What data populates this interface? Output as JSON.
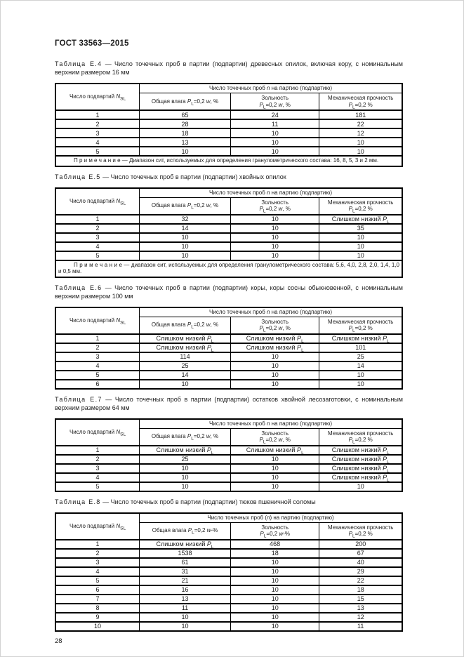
{
  "page": {
    "doc_header": "ГОСТ 33563—2015",
    "page_number": "28"
  },
  "tables": [
    {
      "caption_label": "Таблица Е.4",
      "caption_text": " — Число точечных проб в партии (подпартии) древесных опилок, включая кору, с номинальным верхним размером 16 мм",
      "span_header": [
        {
          "t": "Число точечных проб "
        },
        {
          "i": "n"
        },
        {
          "t": " на партию (подпартию)"
        }
      ],
      "col_headers": [
        [
          {
            "t": "Число подпартий "
          },
          {
            "i": "N"
          },
          {
            "s": "SL"
          }
        ],
        [
          {
            "t": "Общая влага "
          },
          {
            "i": "P"
          },
          {
            "s": "L"
          },
          {
            "t": "=0,2 "
          },
          {
            "i": "w"
          },
          {
            "t": ", %"
          }
        ],
        [
          {
            "t": "Зольность"
          },
          {
            "br": true
          },
          {
            "i": "P"
          },
          {
            "s": "L"
          },
          {
            "t": "=0,2 "
          },
          {
            "i": "w"
          },
          {
            "t": ", %"
          }
        ],
        [
          {
            "t": "Механическая прочность"
          },
          {
            "br": true
          },
          {
            "i": "P"
          },
          {
            "s": "L"
          },
          {
            "t": "=0,2 %"
          }
        ]
      ],
      "rows": [
        [
          "1",
          "65",
          "24",
          "181"
        ],
        [
          "2",
          "28",
          "11",
          "22"
        ],
        [
          "3",
          "18",
          "10",
          "12"
        ],
        [
          "4",
          "13",
          "10",
          "10"
        ],
        [
          "5",
          "10",
          "10",
          "10"
        ]
      ],
      "note": "П р и м е ч а н и е  — Диапазон сит, используемых для определения гранулометрического состава: 16, 8, 5, 3 и 2 мм."
    },
    {
      "caption_label": "Таблица Е.5",
      "caption_text": " — Число точечных проб в партии (подпартии) хвойных опилок",
      "span_header": [
        {
          "t": "Число точечных проб "
        },
        {
          "i": "n"
        },
        {
          "t": " на партию (подпартию)"
        }
      ],
      "col_headers": [
        [
          {
            "t": "Число подпартий "
          },
          {
            "i": "N"
          },
          {
            "s": "SL"
          }
        ],
        [
          {
            "t": "Общая влага "
          },
          {
            "i": "P"
          },
          {
            "s": "L"
          },
          {
            "t": "=0,2 "
          },
          {
            "i": "w"
          },
          {
            "t": ", %"
          }
        ],
        [
          {
            "t": "Зольность"
          },
          {
            "br": true
          },
          {
            "i": "P"
          },
          {
            "s": "L"
          },
          {
            "t": "=0,2 "
          },
          {
            "i": "w"
          },
          {
            "t": ", %"
          }
        ],
        [
          {
            "t": "Механическая прочность"
          },
          {
            "br": true
          },
          {
            "i": "P"
          },
          {
            "s": "L"
          },
          {
            "t": "=0,2 %"
          }
        ]
      ],
      "rows": [
        [
          "1",
          "32",
          "10",
          [
            {
              "t": "Слишком низкий "
            },
            {
              "i": "P"
            },
            {
              "s": "L"
            }
          ]
        ],
        [
          "2",
          "14",
          "10",
          "35"
        ],
        [
          "3",
          "10",
          "10",
          "10"
        ],
        [
          "4",
          "10",
          "10",
          "10"
        ],
        [
          "5",
          "10",
          "10",
          "10"
        ]
      ],
      "note": "П р и м е ч а н и е  — диапазон сит, используемых для определения гранулометрического состава: 5,6, 4,0, 2,8, 2,0, 1,4, 1,0 и 0,5 мм."
    },
    {
      "caption_label": "Таблица Е.6",
      "caption_text": " — Число точечных проб в партии (подпартии) коры, коры сосны обыкновенной, с номинальным верхним размером 100 мм",
      "span_header": [
        {
          "t": "Число точечных проб "
        },
        {
          "i": "n"
        },
        {
          "t": " на партию (подпартию)"
        }
      ],
      "col_headers": [
        [
          {
            "t": "Число подпартий "
          },
          {
            "i": "N"
          },
          {
            "s": "SL"
          }
        ],
        [
          {
            "t": "Общая влага "
          },
          {
            "i": "P"
          },
          {
            "s": "L"
          },
          {
            "t": "=0,2 "
          },
          {
            "i": "w"
          },
          {
            "t": ", %"
          }
        ],
        [
          {
            "t": "Зольность"
          },
          {
            "br": true
          },
          {
            "i": "P"
          },
          {
            "s": "L"
          },
          {
            "t": "=0,2 "
          },
          {
            "i": "w"
          },
          {
            "t": ", %"
          }
        ],
        [
          {
            "t": "Механическая прочность"
          },
          {
            "br": true
          },
          {
            "i": "P"
          },
          {
            "s": "L"
          },
          {
            "t": "=0,2 %"
          }
        ]
      ],
      "rows": [
        [
          "1",
          [
            {
              "t": "Слишком низкий "
            },
            {
              "i": "P"
            },
            {
              "s": "L"
            }
          ],
          [
            {
              "t": "Слишком низкий "
            },
            {
              "i": "P"
            },
            {
              "s": "L"
            }
          ],
          [
            {
              "t": "Слишком низкий "
            },
            {
              "i": "P"
            },
            {
              "s": "L"
            }
          ]
        ],
        [
          "2",
          [
            {
              "t": "Слишком низкий "
            },
            {
              "i": "P"
            },
            {
              "s": "L"
            }
          ],
          [
            {
              "t": "Слишком низкий "
            },
            {
              "i": "P"
            },
            {
              "s": "L"
            }
          ],
          "101"
        ],
        [
          "3",
          "114",
          "10",
          "25"
        ],
        [
          "4",
          "25",
          "10",
          "14"
        ],
        [
          "5",
          "14",
          "10",
          "10"
        ],
        [
          "6",
          "10",
          "10",
          "10"
        ]
      ]
    },
    {
      "caption_label": "Таблица Е.7",
      "caption_text": " — Число точечных проб в партии (подпартии) остатков хвойной лесозаготовки, с номинальным верхним размером 64 мм",
      "span_header": [
        {
          "t": "Число точечных проб "
        },
        {
          "i": "n"
        },
        {
          "t": " на партию (подпартию)"
        }
      ],
      "col_headers": [
        [
          {
            "t": "Число подпартий "
          },
          {
            "i": "N"
          },
          {
            "s": "SL"
          }
        ],
        [
          {
            "t": "Общая влага "
          },
          {
            "i": "P"
          },
          {
            "s": "L"
          },
          {
            "t": "=0,2 "
          },
          {
            "i": "w"
          },
          {
            "t": ", %"
          }
        ],
        [
          {
            "t": "Зольность"
          },
          {
            "br": true
          },
          {
            "i": "P"
          },
          {
            "s": "L"
          },
          {
            "t": "=0,2 "
          },
          {
            "i": "w"
          },
          {
            "t": ", %"
          }
        ],
        [
          {
            "t": "Механическая прочность"
          },
          {
            "br": true
          },
          {
            "i": "P"
          },
          {
            "s": "L"
          },
          {
            "t": "=0,2 %"
          }
        ]
      ],
      "rows": [
        [
          "1",
          [
            {
              "t": "Слишком низкий "
            },
            {
              "i": "P"
            },
            {
              "s": "L"
            }
          ],
          [
            {
              "t": "Слишком низкий "
            },
            {
              "i": "P"
            },
            {
              "s": "L"
            }
          ],
          [
            {
              "t": "Слишком низкий "
            },
            {
              "i": "P"
            },
            {
              "s": "L"
            }
          ]
        ],
        [
          "2",
          "25",
          "10",
          [
            {
              "t": "Слишком низкий "
            },
            {
              "i": "P"
            },
            {
              "s": "L"
            }
          ]
        ],
        [
          "3",
          "10",
          "10",
          [
            {
              "t": "Слишком низкий "
            },
            {
              "i": "P"
            },
            {
              "s": "L"
            }
          ]
        ],
        [
          "4",
          "10",
          "10",
          [
            {
              "t": "Слишком низкий "
            },
            {
              "i": "P"
            },
            {
              "s": "L"
            }
          ]
        ],
        [
          "5",
          "10",
          "10",
          "10"
        ]
      ]
    },
    {
      "caption_label": "Таблица Е.8",
      "caption_text": " — Число точечных проб в партии (подпартии) тюков пшеничной соломы",
      "span_header": [
        {
          "t": "Число точечных проб ("
        },
        {
          "i": "n"
        },
        {
          "t": ") на партию (подпартию)"
        }
      ],
      "col_headers": [
        [
          {
            "t": "Число подпартий "
          },
          {
            "i": "N"
          },
          {
            "s": "SL"
          }
        ],
        [
          {
            "t": "Общая влага "
          },
          {
            "i": "P"
          },
          {
            "s": "L"
          },
          {
            "t": "=0,2 "
          },
          {
            "i": "w"
          },
          {
            "t": "-%"
          }
        ],
        [
          {
            "t": "Зольность"
          },
          {
            "br": true
          },
          {
            "i": "P"
          },
          {
            "s": "L"
          },
          {
            "t": "=0,2 "
          },
          {
            "i": "w"
          },
          {
            "t": "-%"
          }
        ],
        [
          {
            "t": "Механическая прочность"
          },
          {
            "br": true
          },
          {
            "i": "P"
          },
          {
            "s": "L"
          },
          {
            "t": "=0,2 %"
          }
        ]
      ],
      "rows": [
        [
          "1",
          [
            {
              "t": "Слишком низкий "
            },
            {
              "i": "P"
            },
            {
              "s": "L"
            }
          ],
          "468",
          "200"
        ],
        [
          "2",
          "1538",
          "18",
          "67"
        ],
        [
          "3",
          "61",
          "10",
          "40"
        ],
        [
          "4",
          "31",
          "10",
          "29"
        ],
        [
          "5",
          "21",
          "10",
          "22"
        ],
        [
          "6",
          "16",
          "10",
          "18"
        ],
        [
          "7",
          "13",
          "10",
          "15"
        ],
        [
          "8",
          "11",
          "10",
          "13"
        ],
        [
          "9",
          "10",
          "10",
          "12"
        ],
        [
          "10",
          "10",
          "10",
          "11"
        ]
      ]
    }
  ]
}
